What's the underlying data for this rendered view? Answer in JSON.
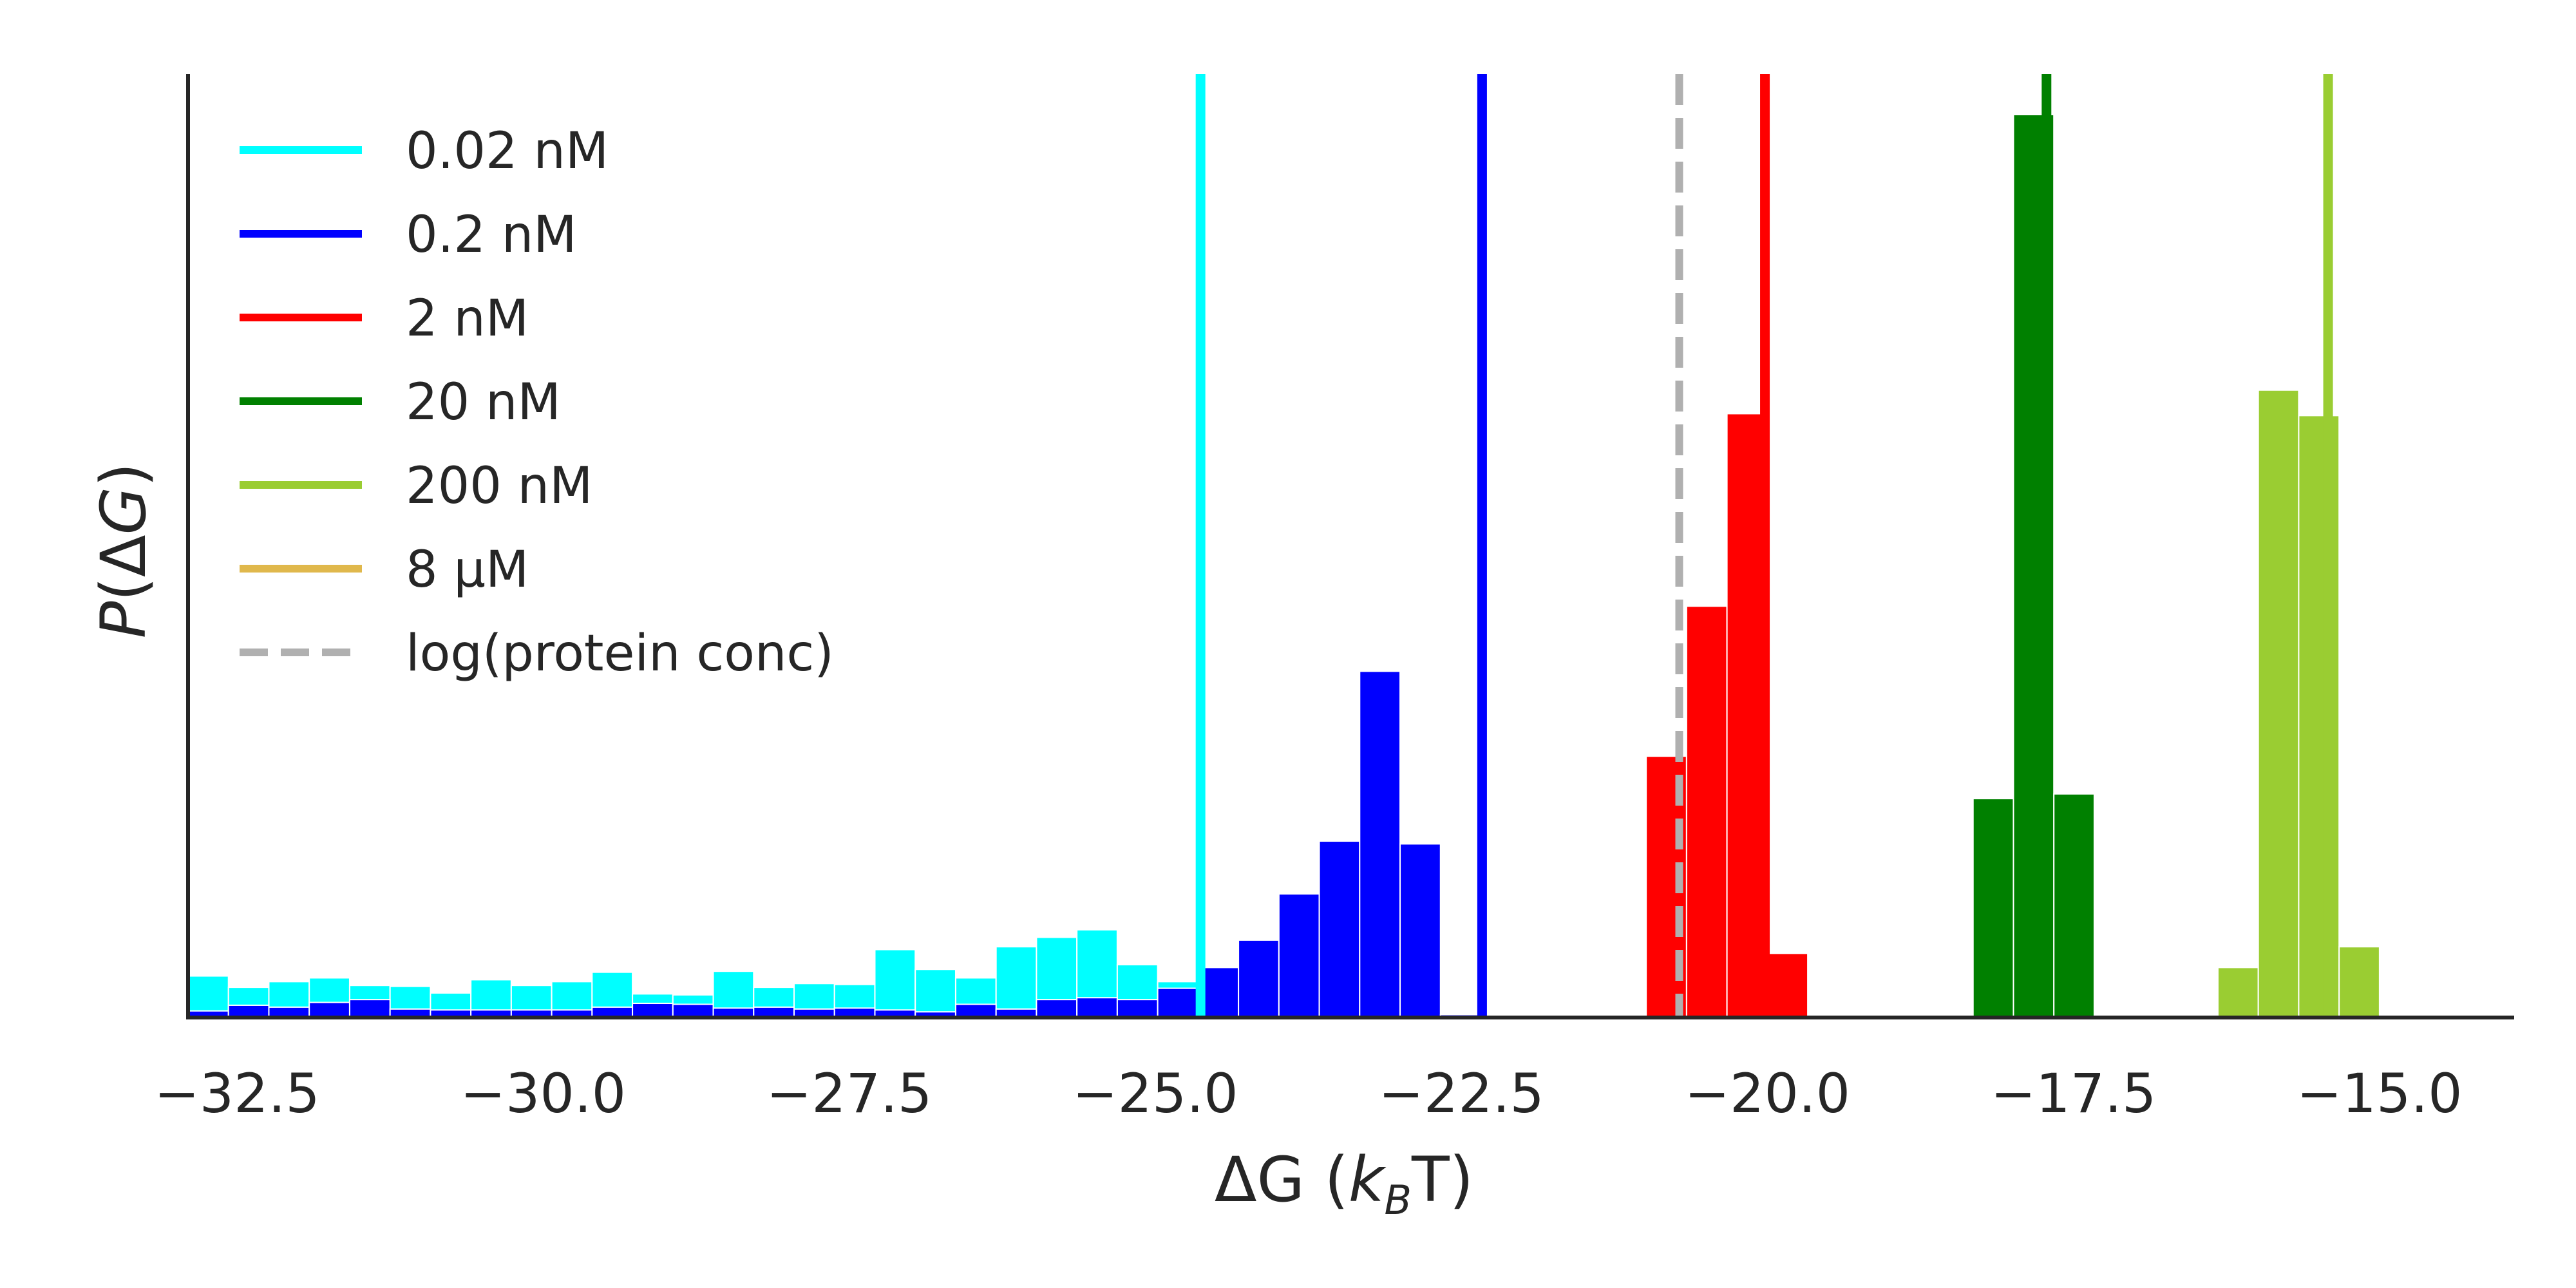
{
  "chart_data": {
    "type": "bar",
    "xlabel_parts": [
      "ΔG (",
      "k",
      "B",
      "T)"
    ],
    "ylabel_parts": [
      "P",
      "(Δ",
      "G",
      ")"
    ],
    "xlim": [
      -32.9,
      -13.9
    ],
    "ylim": [
      0,
      1.0
    ],
    "xticks": [
      -32.5,
      -30.0,
      -27.5,
      -25.0,
      -22.5,
      -20.0,
      -17.5,
      -15.0
    ],
    "xtick_labels": [
      "−32.5",
      "−30.0",
      "−27.5",
      "−25.0",
      "−22.5",
      "−20.0",
      "−17.5",
      "−15.0"
    ],
    "grid": false,
    "legend_position": "top-left",
    "legend": [
      {
        "label": "0.02 nM",
        "color": "#00ffff",
        "style": "solid"
      },
      {
        "label": "0.2 nM",
        "color": "#0000ff",
        "style": "solid"
      },
      {
        "label": "2 nM",
        "color": "#ff0000",
        "style": "solid"
      },
      {
        "label": "20 nM",
        "color": "#008000",
        "style": "solid"
      },
      {
        "label": "200 nM",
        "color": "#9acd32",
        "style": "solid"
      },
      {
        "label": "8 μM",
        "color": "#e0b84c",
        "style": "solid"
      },
      {
        "label": "log(protein conc)",
        "color": "#b0b0b0",
        "style": "dashed"
      }
    ],
    "vlines": [
      {
        "name": "0.02 nM",
        "x": -24.63,
        "color": "#00ffff",
        "style": "solid"
      },
      {
        "name": "0.2 nM",
        "x": -22.33,
        "color": "#0000ff",
        "style": "solid"
      },
      {
        "name": "log(protein conc)",
        "x": -20.72,
        "color": "#b0b0b0",
        "style": "dashed"
      },
      {
        "name": "2 nM",
        "x": -20.02,
        "color": "#ff0000",
        "style": "solid"
      },
      {
        "name": "20 nM",
        "x": -17.72,
        "color": "#008000",
        "style": "solid"
      },
      {
        "name": "200 nM",
        "x": -15.42,
        "color": "#9acd32",
        "style": "solid"
      }
    ],
    "series": [
      {
        "name": "0.02 nM",
        "color": "#00ffff",
        "bins": [
          [
            -32.9,
            -32.57,
            0.044
          ],
          [
            -32.57,
            -32.24,
            0.032
          ],
          [
            -32.24,
            -31.91,
            0.038
          ],
          [
            -31.91,
            -31.58,
            0.042
          ],
          [
            -31.58,
            -31.25,
            0.034
          ],
          [
            -31.25,
            -30.92,
            0.033
          ],
          [
            -30.92,
            -30.59,
            0.026
          ],
          [
            -30.59,
            -30.26,
            0.04
          ],
          [
            -30.26,
            -29.93,
            0.034
          ],
          [
            -29.93,
            -29.6,
            0.038
          ],
          [
            -29.6,
            -29.27,
            0.048
          ],
          [
            -29.27,
            -28.94,
            0.025
          ],
          [
            -28.94,
            -28.61,
            0.024
          ],
          [
            -28.61,
            -28.28,
            0.049
          ],
          [
            -28.28,
            -27.95,
            0.032
          ],
          [
            -27.95,
            -27.62,
            0.036
          ],
          [
            -27.62,
            -27.29,
            0.035
          ],
          [
            -27.29,
            -26.96,
            0.072
          ],
          [
            -26.96,
            -26.63,
            0.051
          ],
          [
            -26.63,
            -26.3,
            0.042
          ],
          [
            -26.3,
            -25.97,
            0.075
          ],
          [
            -25.97,
            -25.64,
            0.085
          ],
          [
            -25.64,
            -25.31,
            0.093
          ],
          [
            -25.31,
            -24.98,
            0.056
          ],
          [
            -24.98,
            -24.65,
            0.038
          ]
        ]
      },
      {
        "name": "0.2 nM",
        "color": "#0000ff",
        "bins": [
          [
            -32.9,
            -32.57,
            0.007
          ],
          [
            -32.57,
            -32.24,
            0.013
          ],
          [
            -32.24,
            -31.91,
            0.011
          ],
          [
            -31.91,
            -31.58,
            0.016
          ],
          [
            -31.58,
            -31.25,
            0.019
          ],
          [
            -31.25,
            -30.92,
            0.009
          ],
          [
            -30.92,
            -30.59,
            0.008
          ],
          [
            -30.59,
            -30.26,
            0.008
          ],
          [
            -30.26,
            -29.93,
            0.008
          ],
          [
            -29.93,
            -29.6,
            0.008
          ],
          [
            -29.6,
            -29.27,
            0.011
          ],
          [
            -29.27,
            -28.94,
            0.015
          ],
          [
            -28.94,
            -28.61,
            0.014
          ],
          [
            -28.61,
            -28.28,
            0.01
          ],
          [
            -28.28,
            -27.95,
            0.011
          ],
          [
            -27.95,
            -27.62,
            0.009
          ],
          [
            -27.62,
            -27.29,
            0.01
          ],
          [
            -27.29,
            -26.96,
            0.008
          ],
          [
            -26.96,
            -26.63,
            0.006
          ],
          [
            -26.63,
            -26.3,
            0.014
          ],
          [
            -26.3,
            -25.97,
            0.009
          ],
          [
            -25.97,
            -25.64,
            0.019
          ],
          [
            -25.64,
            -25.31,
            0.021
          ],
          [
            -25.31,
            -24.98,
            0.019
          ],
          [
            -24.98,
            -24.65,
            0.031
          ],
          [
            -24.65,
            -24.32,
            0.053
          ],
          [
            -24.32,
            -23.99,
            0.082
          ],
          [
            -23.99,
            -23.66,
            0.131
          ],
          [
            -23.66,
            -23.33,
            0.187
          ],
          [
            -23.33,
            -23.0,
            0.367
          ],
          [
            -23.0,
            -22.67,
            0.184
          ],
          [
            -22.67,
            -22.34,
            0.003
          ]
        ]
      },
      {
        "name": "2 nM",
        "color": "#ff0000",
        "bins": [
          [
            -20.99,
            -20.66,
            0.277
          ],
          [
            -20.66,
            -20.33,
            0.436
          ],
          [
            -20.33,
            -20.0,
            0.64
          ],
          [
            -20.0,
            -19.67,
            0.068
          ]
        ]
      },
      {
        "name": "20 nM",
        "color": "#008000",
        "bins": [
          [
            -18.32,
            -17.99,
            0.232
          ],
          [
            -17.99,
            -17.66,
            0.957
          ],
          [
            -17.66,
            -17.33,
            0.237
          ]
        ]
      },
      {
        "name": "200 nM",
        "color": "#9acd32",
        "bins": [
          [
            -16.32,
            -15.99,
            0.053
          ],
          [
            -15.99,
            -15.66,
            0.665
          ],
          [
            -15.66,
            -15.33,
            0.638
          ],
          [
            -15.33,
            -15.0,
            0.075
          ]
        ]
      }
    ]
  }
}
